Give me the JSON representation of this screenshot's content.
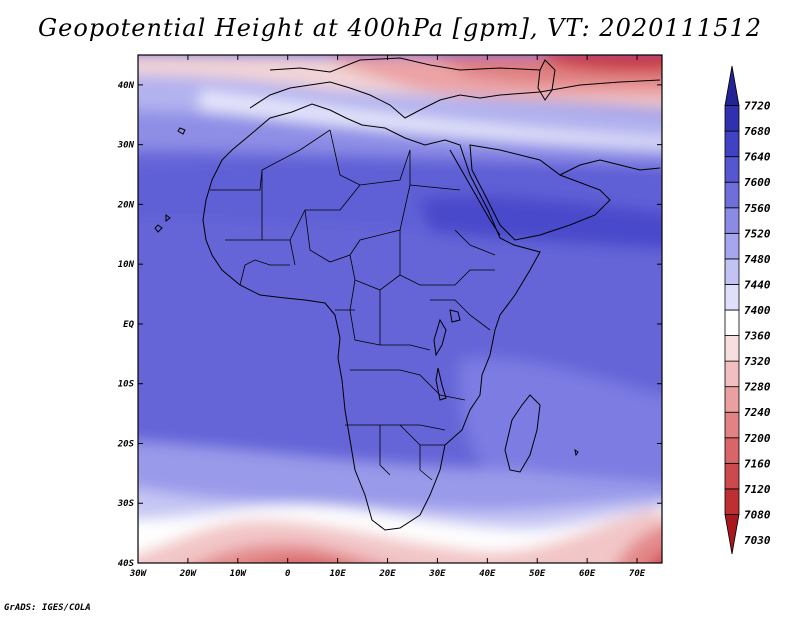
{
  "title": "Geopotential Height at 400hPa [gpm], VT: 2020111512",
  "credit": "GrADS: IGES/COLA",
  "chart_data": {
    "type": "heatmap",
    "variable": "Geopotential Height",
    "level": "400hPa",
    "units": "gpm",
    "valid_time": "2020111512",
    "x_ticks": [
      "30W",
      "20W",
      "10W",
      "0",
      "10E",
      "20E",
      "30E",
      "40E",
      "50E",
      "60E",
      "70E"
    ],
    "y_ticks": [
      "40N",
      "30N",
      "20N",
      "10N",
      "EQ",
      "10S",
      "20S",
      "30S",
      "40S"
    ],
    "lon_range": [
      -30,
      75
    ],
    "lat_range": [
      -40,
      45
    ],
    "colorbar": {
      "levels": [
        7030,
        7080,
        7120,
        7160,
        7200,
        7240,
        7280,
        7320,
        7360,
        7400,
        7440,
        7480,
        7520,
        7560,
        7600,
        7640,
        7680,
        7720
      ],
      "colors": [
        "#a8181c",
        "#bd2f33",
        "#cc4a4d",
        "#d86568",
        "#e38284",
        "#eaa0a1",
        "#f1bfc0",
        "#f8dfdf",
        "#ffffff",
        "#dedffa",
        "#c2c3f3",
        "#a6a6ef",
        "#8b8be6",
        "#6f6fdc",
        "#5656d2",
        "#4141c5",
        "#3131b0",
        "#232395"
      ]
    }
  }
}
